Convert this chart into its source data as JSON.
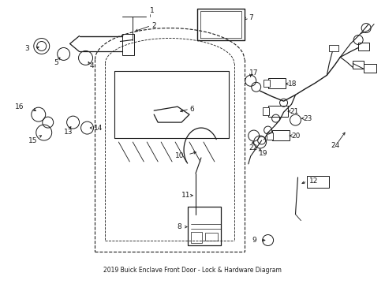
{
  "title": "2019 Buick Enclave Front Door - Lock & Hardware Diagram",
  "bg": "#ffffff",
  "lc": "#1a1a1a",
  "figsize": [
    4.89,
    3.6
  ],
  "dpi": 100
}
